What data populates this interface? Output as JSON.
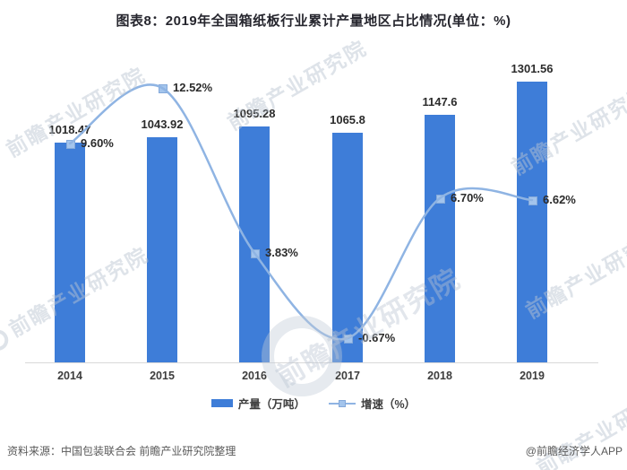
{
  "title": "图表8：2019年全国箱纸板行业累计产量地区占比情况(单位：%)",
  "chart_data": {
    "type": "bar+line",
    "categories": [
      "2014",
      "2015",
      "2016",
      "2017",
      "2018",
      "2019"
    ],
    "series": [
      {
        "name": "产量（万吨）",
        "type": "bar",
        "color": "#3e7dd8",
        "values": [
          1018.47,
          1043.92,
          1095.28,
          1065.8,
          1147.6,
          1301.56
        ],
        "labels": [
          "1018.47",
          "1043.92",
          "1095.28",
          "1065.8",
          "1147.6",
          "1301.56"
        ]
      },
      {
        "name": "增速（%）",
        "type": "line",
        "color": "#8fb4e3",
        "marker_color": "#a3c4ec",
        "values": [
          9.6,
          12.52,
          3.83,
          -0.67,
          6.7,
          6.62
        ],
        "labels": [
          "9.60%",
          "12.52%",
          "3.83%",
          "-0.67%",
          "6.70%",
          "6.62%"
        ]
      }
    ],
    "xlabel": "",
    "ylabel": "",
    "ylim_left": [
      0,
      1400
    ],
    "grid": false,
    "legend_position": "bottom-center"
  },
  "footer": {
    "source": "资料来源：中国包装联合会 前瞻产业研究院整理",
    "credit": "@前瞻经济学人APP"
  },
  "watermark": {
    "text": "前瞻产业研究院"
  },
  "colors": {
    "bar": "#3e7dd8",
    "line": "#8fb4e3",
    "marker": "#a3c4ec",
    "axis": "#d9d9d9",
    "title_text": "#26262e",
    "label_text": "#2b2b2b",
    "source_text": "#595959"
  }
}
